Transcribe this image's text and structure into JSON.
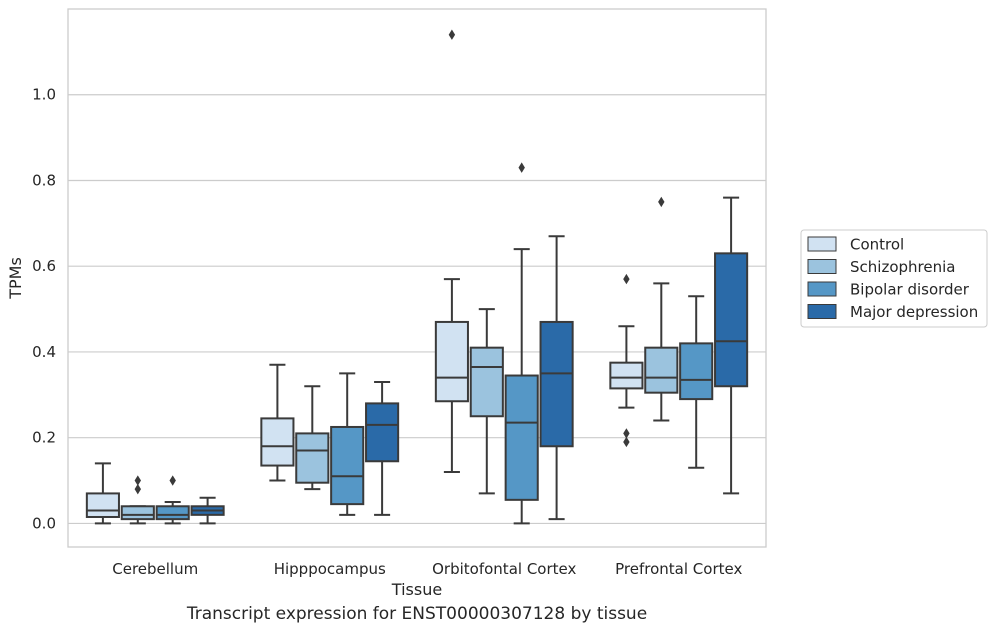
{
  "caption": "Transcript expression for ENST00000307128 by tissue",
  "chart_data": {
    "type": "box",
    "xlabel": "Tissue",
    "ylabel": "TPMs",
    "ylim": [
      -0.055,
      1.2
    ],
    "yticks": [
      0.0,
      0.2,
      0.4,
      0.6,
      0.8,
      1.0
    ],
    "ytick_labels": [
      "0.0",
      "0.2",
      "0.4",
      "0.6",
      "0.8",
      "1.0"
    ],
    "grid": "horizontal",
    "legend_position": "right",
    "categories": [
      "Cerebellum",
      "Hipppocampus",
      "Orbitofontal Cortex",
      "Prefrontal Cortex"
    ],
    "series": [
      {
        "name": "Control",
        "color": "#d1e2f2",
        "boxes": [
          {
            "whislo": 0.0,
            "q1": 0.015,
            "med": 0.03,
            "q3": 0.07,
            "whishi": 0.14,
            "fliers": []
          },
          {
            "whislo": 0.1,
            "q1": 0.135,
            "med": 0.18,
            "q3": 0.245,
            "whishi": 0.37,
            "fliers": []
          },
          {
            "whislo": 0.12,
            "q1": 0.285,
            "med": 0.34,
            "q3": 0.47,
            "whishi": 0.57,
            "fliers": [
              1.14
            ]
          },
          {
            "whislo": 0.27,
            "q1": 0.315,
            "med": 0.34,
            "q3": 0.375,
            "whishi": 0.46,
            "fliers": [
              0.57,
              0.21,
              0.19
            ]
          }
        ]
      },
      {
        "name": "Schizophrenia",
        "color": "#9bc3de",
        "boxes": [
          {
            "whislo": 0.0,
            "q1": 0.01,
            "med": 0.02,
            "q3": 0.04,
            "whishi": 0.04,
            "fliers": [
              0.1,
              0.08
            ]
          },
          {
            "whislo": 0.08,
            "q1": 0.095,
            "med": 0.17,
            "q3": 0.21,
            "whishi": 0.32,
            "fliers": []
          },
          {
            "whislo": 0.07,
            "q1": 0.25,
            "med": 0.365,
            "q3": 0.41,
            "whishi": 0.5,
            "fliers": []
          },
          {
            "whislo": 0.24,
            "q1": 0.305,
            "med": 0.34,
            "q3": 0.41,
            "whishi": 0.56,
            "fliers": [
              0.75
            ]
          }
        ]
      },
      {
        "name": "Bipolar disorder",
        "color": "#5597c6",
        "boxes": [
          {
            "whislo": 0.0,
            "q1": 0.01,
            "med": 0.02,
            "q3": 0.04,
            "whishi": 0.05,
            "fliers": [
              0.1
            ]
          },
          {
            "whislo": 0.02,
            "q1": 0.045,
            "med": 0.11,
            "q3": 0.225,
            "whishi": 0.35,
            "fliers": []
          },
          {
            "whislo": 0.0,
            "q1": 0.055,
            "med": 0.235,
            "q3": 0.345,
            "whishi": 0.64,
            "fliers": [
              0.83
            ]
          },
          {
            "whislo": 0.13,
            "q1": 0.29,
            "med": 0.335,
            "q3": 0.42,
            "whishi": 0.53,
            "fliers": []
          }
        ]
      },
      {
        "name": "Major depression",
        "color": "#2a6aa8",
        "boxes": [
          {
            "whislo": 0.0,
            "q1": 0.02,
            "med": 0.03,
            "q3": 0.04,
            "whishi": 0.06,
            "fliers": []
          },
          {
            "whislo": 0.02,
            "q1": 0.145,
            "med": 0.23,
            "q3": 0.28,
            "whishi": 0.33,
            "fliers": []
          },
          {
            "whislo": 0.01,
            "q1": 0.18,
            "med": 0.35,
            "q3": 0.47,
            "whishi": 0.67,
            "fliers": []
          },
          {
            "whislo": 0.07,
            "q1": 0.32,
            "med": 0.425,
            "q3": 0.63,
            "whishi": 0.76,
            "fliers": []
          }
        ]
      }
    ]
  }
}
